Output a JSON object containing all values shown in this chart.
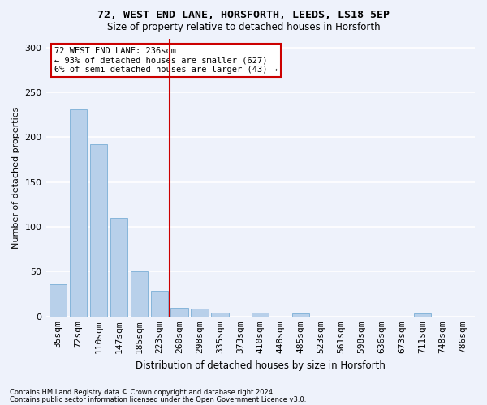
{
  "title1": "72, WEST END LANE, HORSFORTH, LEEDS, LS18 5EP",
  "title2": "Size of property relative to detached houses in Horsforth",
  "xlabel": "Distribution of detached houses by size in Horsforth",
  "ylabel": "Number of detached properties",
  "categories": [
    "35sqm",
    "72sqm",
    "110sqm",
    "147sqm",
    "185sqm",
    "223sqm",
    "260sqm",
    "298sqm",
    "335sqm",
    "373sqm",
    "410sqm",
    "448sqm",
    "485sqm",
    "523sqm",
    "561sqm",
    "598sqm",
    "636sqm",
    "673sqm",
    "711sqm",
    "748sqm",
    "786sqm"
  ],
  "values": [
    36,
    231,
    192,
    110,
    50,
    29,
    10,
    9,
    4,
    0,
    4,
    0,
    3,
    0,
    0,
    0,
    0,
    0,
    3,
    0,
    0
  ],
  "bar_color": "#b8d0ea",
  "bar_edge_color": "#7aaed6",
  "vline_color": "#cc0000",
  "annotation_text": "72 WEST END LANE: 236sqm\n← 93% of detached houses are smaller (627)\n6% of semi-detached houses are larger (43) →",
  "ylim": [
    0,
    310
  ],
  "yticks": [
    0,
    50,
    100,
    150,
    200,
    250,
    300
  ],
  "bg_color": "#eef2fb",
  "grid_color": "#ffffff",
  "footer_line1": "Contains HM Land Registry data © Crown copyright and database right 2024.",
  "footer_line2": "Contains public sector information licensed under the Open Government Licence v3.0."
}
